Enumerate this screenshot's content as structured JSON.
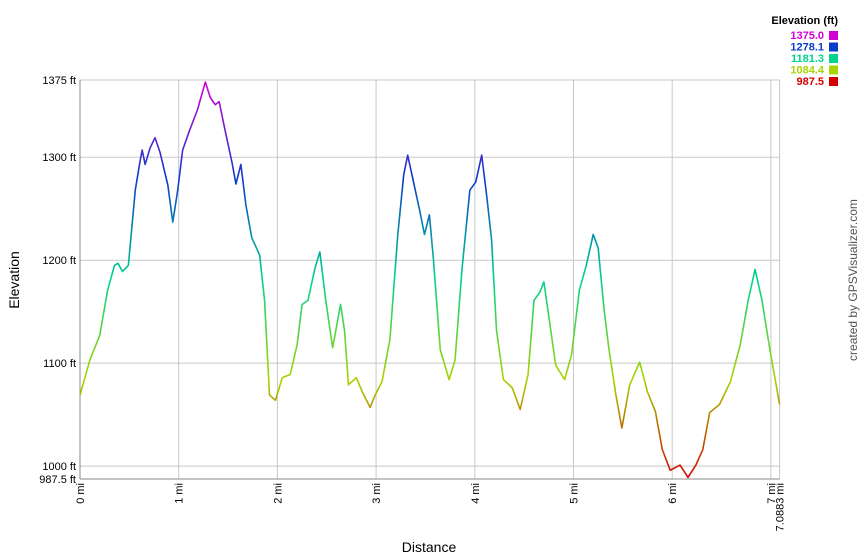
{
  "chart_data": {
    "type": "line",
    "y_title": "Elevation",
    "x_title": "Distance",
    "credit": "created by GPSVisualizer.com",
    "grid": true,
    "xlim": [
      0,
      7.0883
    ],
    "ylim": [
      987.5,
      1375
    ],
    "xticks": [
      {
        "value": 0,
        "label": "0 mi"
      },
      {
        "value": 1,
        "label": "1 mi"
      },
      {
        "value": 2,
        "label": "2 mi"
      },
      {
        "value": 3,
        "label": "3 mi"
      },
      {
        "value": 4,
        "label": "4 mi"
      },
      {
        "value": 5,
        "label": "5 mi"
      },
      {
        "value": 6,
        "label": "6 mi"
      },
      {
        "value": 7,
        "label": "7 mi"
      },
      {
        "value": 7.0883,
        "label": "7.0883 mi"
      }
    ],
    "yticks": [
      {
        "value": 987.5,
        "label": "987.5 ft"
      },
      {
        "value": 1000,
        "label": "1000 ft"
      },
      {
        "value": 1100,
        "label": "1100 ft"
      },
      {
        "value": 1200,
        "label": "1200 ft"
      },
      {
        "value": 1300,
        "label": "1300 ft"
      },
      {
        "value": 1375,
        "label": "1375 ft"
      }
    ],
    "legend": {
      "title": "Elevation (ft)",
      "position": "top-right",
      "items": [
        {
          "value": 1375,
          "label": "1375.0",
          "color": "#d400d4"
        },
        {
          "value": 1278.1,
          "label": "1278.1",
          "color": "#0a3ccc"
        },
        {
          "value": 1181.3,
          "label": "1181.3",
          "color": "#00d48c"
        },
        {
          "value": 1084.4,
          "label": "1084.4",
          "color": "#a8d400"
        },
        {
          "value": 987.5,
          "label": "987.5",
          "color": "#d40000"
        }
      ]
    },
    "x": [
      0,
      0.1,
      0.2,
      0.28,
      0.35,
      0.385,
      0.43,
      0.49,
      0.56,
      0.61,
      0.63,
      0.66,
      0.71,
      0.76,
      0.81,
      0.89,
      0.94,
      0.99,
      1.04,
      1.11,
      1.19,
      1.27,
      1.32,
      1.37,
      1.41,
      1.47,
      1.54,
      1.58,
      1.63,
      1.68,
      1.74,
      1.82,
      1.87,
      1.92,
      1.98,
      2.05,
      2.13,
      2.2,
      2.25,
      2.31,
      2.38,
      2.43,
      2.49,
      2.56,
      2.64,
      2.68,
      2.72,
      2.8,
      2.86,
      2.94,
      2.99,
      3.06,
      3.14,
      3.22,
      3.28,
      3.32,
      3.37,
      3.44,
      3.49,
      3.54,
      3.58,
      3.65,
      3.74,
      3.8,
      3.87,
      3.95,
      4.01,
      4.07,
      4.12,
      4.17,
      4.22,
      4.29,
      4.38,
      4.46,
      4.54,
      4.6,
      4.66,
      4.7,
      4.74,
      4.82,
      4.91,
      4.98,
      5.06,
      5.13,
      5.2,
      5.25,
      5.31,
      5.36,
      5.43,
      5.49,
      5.57,
      5.67,
      5.75,
      5.83,
      5.9,
      5.98,
      6.08,
      6.16,
      6.24,
      6.31,
      6.38,
      6.48,
      6.59,
      6.69,
      6.77,
      6.84,
      6.91,
      6.99,
      7.0883
    ],
    "values": [
      1069,
      1103,
      1127,
      1171,
      1195,
      1197,
      1189,
      1195,
      1268,
      1297,
      1307,
      1293,
      1309,
      1319,
      1305,
      1273,
      1237,
      1268,
      1307,
      1326,
      1346,
      1373,
      1358,
      1351,
      1354,
      1326,
      1295,
      1274,
      1293,
      1254,
      1222,
      1205,
      1161,
      1069,
      1064,
      1086,
      1089,
      1118,
      1157,
      1161,
      1192,
      1208,
      1161,
      1115,
      1157,
      1132,
      1079,
      1086,
      1072,
      1057,
      1069,
      1082,
      1123,
      1225,
      1283,
      1302,
      1280,
      1249,
      1225,
      1244,
      1202,
      1113,
      1084,
      1103,
      1191,
      1268,
      1276,
      1302,
      1263,
      1220,
      1132,
      1084,
      1076,
      1055,
      1089,
      1161,
      1169,
      1179,
      1152,
      1098,
      1084,
      1108,
      1171,
      1195,
      1225,
      1212,
      1152,
      1113,
      1069,
      1037,
      1079,
      1101,
      1072,
      1053,
      1016,
      996,
      1001,
      989,
      1001,
      1016,
      1052,
      1060,
      1082,
      1118,
      1161,
      1191,
      1161,
      1113,
      1060
    ]
  }
}
